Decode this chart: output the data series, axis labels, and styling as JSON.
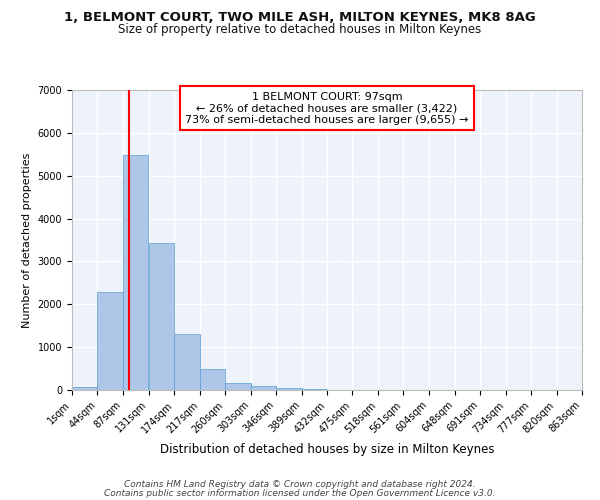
{
  "title_line1": "1, BELMONT COURT, TWO MILE ASH, MILTON KEYNES, MK8 8AG",
  "title_line2": "Size of property relative to detached houses in Milton Keynes",
  "xlabel": "Distribution of detached houses by size in Milton Keynes",
  "ylabel": "Number of detached properties",
  "footer_line1": "Contains HM Land Registry data © Crown copyright and database right 2024.",
  "footer_line2": "Contains public sector information licensed under the Open Government Licence v3.0.",
  "bar_left_edges": [
    1,
    44,
    87,
    131,
    174,
    217,
    260,
    303,
    346,
    389,
    432,
    475,
    518,
    561,
    604,
    648,
    691,
    734,
    777,
    820
  ],
  "bar_heights": [
    80,
    2280,
    5480,
    3440,
    1300,
    480,
    170,
    100,
    40,
    20,
    10,
    8,
    5,
    4,
    3,
    2,
    2,
    1,
    1,
    0
  ],
  "bin_width": 43,
  "bar_color": "#aec6e8",
  "bar_edge_color": "#5a9fd4",
  "red_line_x": 97,
  "annotation_text_line1": "1 BELMONT COURT: 97sqm",
  "annotation_text_line2": "← 26% of detached houses are smaller (3,422)",
  "annotation_text_line3": "73% of semi-detached houses are larger (9,655) →",
  "ylim": [
    0,
    7000
  ],
  "yticks": [
    0,
    1000,
    2000,
    3000,
    4000,
    5000,
    6000,
    7000
  ],
  "tick_labels": [
    "1sqm",
    "44sqm",
    "87sqm",
    "131sqm",
    "174sqm",
    "217sqm",
    "260sqm",
    "303sqm",
    "346sqm",
    "389sqm",
    "432sqm",
    "475sqm",
    "518sqm",
    "561sqm",
    "604sqm",
    "648sqm",
    "691sqm",
    "734sqm",
    "777sqm",
    "820sqm",
    "863sqm"
  ],
  "background_color": "#eef2fa",
  "grid_color": "#ffffff",
  "title1_fontsize": 9.5,
  "title2_fontsize": 8.5,
  "ylabel_fontsize": 8,
  "xlabel_fontsize": 8.5,
  "tick_fontsize": 7,
  "ann_fontsize": 8,
  "footer_fontsize": 6.5
}
